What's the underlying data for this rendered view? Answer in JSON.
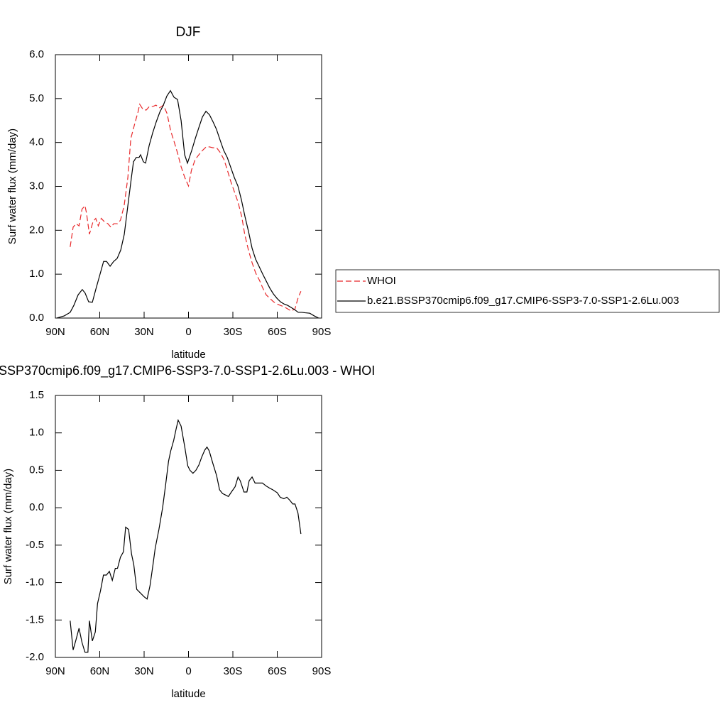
{
  "chart_data": [
    {
      "type": "line",
      "title": "DJF",
      "xlabel": "latitude",
      "ylabel": "Surf water flux (mm/day)",
      "xlim": [
        90,
        -90
      ],
      "xticks": [
        {
          "value": 90,
          "label": "90N"
        },
        {
          "value": 60,
          "label": "60N"
        },
        {
          "value": 30,
          "label": "30N"
        },
        0,
        {
          "value": -30,
          "label": "30S"
        },
        {
          "value": -60,
          "label": "60S"
        },
        {
          "value": -90,
          "label": "90S"
        }
      ],
      "ylim": [
        0,
        6
      ],
      "yticks": [
        {
          "value": 0,
          "label": "0.0"
        },
        {
          "value": 1,
          "label": "1.0"
        },
        {
          "value": 2,
          "label": "2.0"
        },
        {
          "value": 3,
          "label": "3.0"
        },
        {
          "value": 4,
          "label": "4.0"
        },
        {
          "value": 5,
          "label": "5.0"
        },
        {
          "value": 6,
          "label": "6.0"
        }
      ],
      "legend": "outside-right",
      "series": [
        {
          "name": "WHOI",
          "color": "#e8282a",
          "style": "dashed",
          "x": [
            80,
            78,
            76,
            74,
            72,
            70,
            69,
            67,
            64.5,
            62.7,
            61,
            59,
            57,
            54.5,
            52.5,
            50.5,
            48,
            46,
            43.5,
            41,
            39,
            36,
            34,
            33,
            30.5,
            28.5,
            26.5,
            24,
            22,
            19.5,
            17,
            14.5,
            12,
            10,
            7.5,
            5,
            2.5,
            0,
            -2,
            -4.5,
            -7,
            -9.5,
            -12,
            -14,
            -16.5,
            -19,
            -21.5,
            -24,
            -26,
            -28.5,
            -31,
            -33.5,
            -36,
            -38,
            -40.5,
            -43,
            -45.5,
            -48,
            -50,
            -52.5,
            -55,
            -57.5,
            -60,
            -62,
            -64.5,
            -67,
            -69.5,
            -72,
            -74,
            -76
          ],
          "values": [
            1.62,
            2.07,
            2.15,
            2.1,
            2.48,
            2.56,
            2.4,
            1.91,
            2.2,
            2.27,
            2.1,
            2.27,
            2.2,
            2.15,
            2.07,
            2.15,
            2.15,
            2.23,
            2.56,
            3.2,
            4.09,
            4.47,
            4.71,
            4.87,
            4.74,
            4.74,
            4.82,
            4.82,
            4.85,
            4.79,
            4.85,
            4.66,
            4.26,
            4.05,
            3.77,
            3.45,
            3.2,
            3.01,
            3.37,
            3.61,
            3.72,
            3.82,
            3.9,
            3.9,
            3.88,
            3.88,
            3.77,
            3.61,
            3.4,
            3.12,
            2.88,
            2.64,
            2.31,
            1.91,
            1.55,
            1.26,
            1.02,
            0.86,
            0.7,
            0.53,
            0.45,
            0.37,
            0.32,
            0.29,
            0.26,
            0.21,
            0.16,
            0.21,
            0.45,
            0.61
          ]
        },
        {
          "name": "b.e21.BSSP370cmip6.f09_g17.CMIP6-SSP3-7.0-SSP1-2.6Lu.003",
          "color": "#000000",
          "style": "solid",
          "x": [
            89,
            84,
            80,
            77.5,
            74.6,
            71.8,
            69.9,
            67.5,
            65,
            62.7,
            60.3,
            57.4,
            55.4,
            53,
            50.6,
            48.2,
            45.8,
            43.4,
            41,
            38.6,
            37.2,
            35.3,
            33.4,
            32.4,
            30.5,
            29,
            26.6,
            24.2,
            21.8,
            19.4,
            17,
            14.6,
            12.2,
            9.8,
            7.4,
            5,
            2.6,
            0.7,
            -2.2,
            -4.6,
            -7,
            -9.4,
            -11.8,
            -14.2,
            -16.6,
            -18.9,
            -21.4,
            -23.8,
            -26.2,
            -28.6,
            -31,
            -33.4,
            -35.8,
            -38.2,
            -40.6,
            -43,
            -45.4,
            -47.8,
            -50.2,
            -52.6,
            -55,
            -57.4,
            -59.8,
            -62.2,
            -64.6,
            -67,
            -69.4,
            -71.8,
            -74.2,
            -76.6,
            -79,
            -82,
            -85,
            -88
          ],
          "values": [
            0,
            0.05,
            0.13,
            0.29,
            0.53,
            0.65,
            0.57,
            0.37,
            0.36,
            0.65,
            0.94,
            1.29,
            1.29,
            1.18,
            1.29,
            1.36,
            1.55,
            1.91,
            2.56,
            3.2,
            3.56,
            3.66,
            3.66,
            3.72,
            3.56,
            3.53,
            3.93,
            4.22,
            4.47,
            4.69,
            4.85,
            5.06,
            5.18,
            5.03,
            4.98,
            4.5,
            3.72,
            3.53,
            3.82,
            4.09,
            4.34,
            4.58,
            4.71,
            4.63,
            4.47,
            4.3,
            4.05,
            3.82,
            3.66,
            3.43,
            3.2,
            3.01,
            2.69,
            2.31,
            1.97,
            1.59,
            1.34,
            1.17,
            1,
            0.84,
            0.68,
            0.55,
            0.45,
            0.37,
            0.32,
            0.29,
            0.24,
            0.19,
            0.13,
            0.13,
            0.12,
            0.11,
            0.05,
            0
          ]
        }
      ]
    },
    {
      "type": "line",
      "title": "SSP370cmip6.f09_g17.CMIP6-SSP3-7.0-SSP1-2.6Lu.003 - WHOI",
      "xlabel": "latitude",
      "ylabel": "Surf water flux (mm/day)",
      "xlim": [
        90,
        -90
      ],
      "xticks": [
        {
          "value": 90,
          "label": "90N"
        },
        {
          "value": 60,
          "label": "60N"
        },
        {
          "value": 30,
          "label": "30N"
        },
        0,
        {
          "value": -30,
          "label": "30S"
        },
        {
          "value": -60,
          "label": "60S"
        },
        {
          "value": -90,
          "label": "90S"
        }
      ],
      "ylim": [
        -2,
        1.5
      ],
      "yticks": [
        {
          "value": -2,
          "label": "-2.0"
        },
        -1.5,
        {
          "value": -1,
          "label": "-1.0"
        },
        -0.5,
        {
          "value": 0,
          "label": "0.0"
        },
        0.5,
        {
          "value": 1,
          "label": "1.0"
        },
        1.5
      ],
      "series": [
        {
          "color": "#000000",
          "style": "solid",
          "x": [
            80,
            78,
            76,
            74,
            72,
            70,
            68,
            67,
            65,
            63,
            61.5,
            59.5,
            57.5,
            55.5,
            53.5,
            51.5,
            49.5,
            48,
            46,
            44,
            42.5,
            40.5,
            38.5,
            37,
            35,
            32.5,
            30,
            28,
            26,
            24,
            22.5,
            20,
            17.5,
            15.5,
            13.5,
            12,
            10,
            8.5,
            7,
            5,
            2.5,
            0.5,
            -1,
            -3,
            -5,
            -7,
            -9,
            -11,
            -12.5,
            -14,
            -16.5,
            -19,
            -21,
            -23,
            -25,
            -27,
            -29,
            -31.5,
            -33.5,
            -35,
            -37.5,
            -39.5,
            -41,
            -43,
            -45,
            -47.5,
            -50,
            -52.5,
            -55,
            -57,
            -60,
            -62,
            -64.5,
            -66.5,
            -68.5,
            -70.5,
            -72,
            -74,
            -76
          ],
          "values": [
            -1.51,
            -1.9,
            -1.76,
            -1.61,
            -1.8,
            -1.93,
            -1.93,
            -1.51,
            -1.78,
            -1.66,
            -1.28,
            -1.11,
            -0.9,
            -0.9,
            -0.85,
            -0.97,
            -0.81,
            -0.81,
            -0.66,
            -0.59,
            -0.26,
            -0.29,
            -0.62,
            -0.76,
            -1.09,
            -1.14,
            -1.19,
            -1.22,
            -1.04,
            -0.76,
            -0.54,
            -0.29,
            0,
            0.3,
            0.62,
            0.76,
            0.9,
            1.04,
            1.17,
            1.09,
            0.81,
            0.56,
            0.5,
            0.46,
            0.5,
            0.57,
            0.68,
            0.77,
            0.81,
            0.76,
            0.59,
            0.43,
            0.24,
            0.19,
            0.17,
            0.15,
            0.21,
            0.28,
            0.41,
            0.36,
            0.21,
            0.21,
            0.36,
            0.41,
            0.33,
            0.33,
            0.33,
            0.29,
            0.26,
            0.24,
            0.2,
            0.14,
            0.12,
            0.14,
            0.1,
            0.05,
            0.05,
            -0.07,
            -0.35
          ]
        }
      ]
    }
  ]
}
